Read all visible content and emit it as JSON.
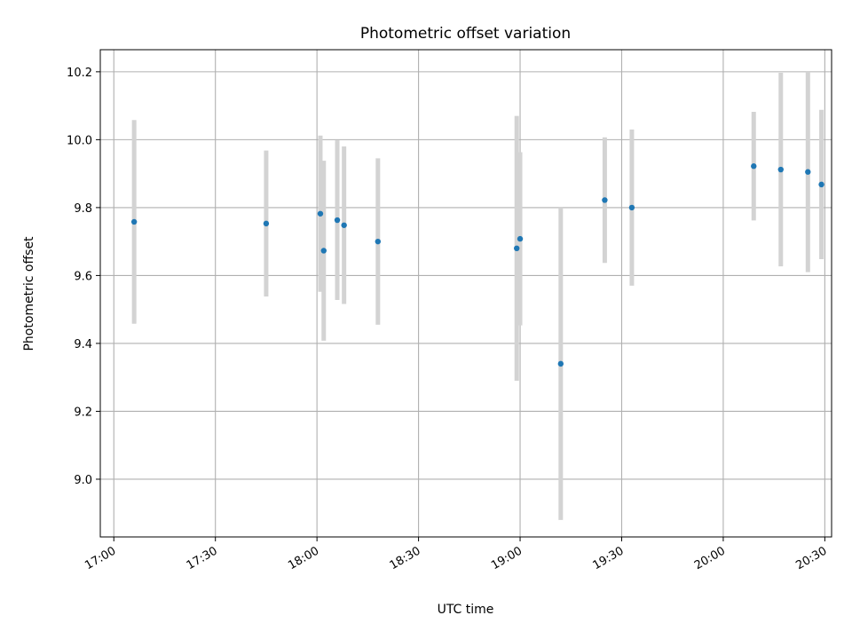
{
  "chart_data": {
    "type": "scatter",
    "title": "Photometric offset variation",
    "xlabel": "UTC time",
    "ylabel": "Photometric offset",
    "x_ticks": [
      "17:00",
      "17:30",
      "18:00",
      "18:30",
      "19:00",
      "19:30",
      "20:00",
      "20:30"
    ],
    "y_ticks": [
      "9.0",
      "9.2",
      "9.4",
      "9.6",
      "9.8",
      "10.0",
      "10.2"
    ],
    "xlim": [
      "16:56",
      "20:32"
    ],
    "ylim": [
      8.83,
      10.265
    ],
    "grid": true,
    "point_color": "#1f77b4",
    "errorbar_color": "#d3d3d3",
    "series": [
      {
        "points": [
          {
            "x": "17:06",
            "y": 9.758,
            "err": 0.3
          },
          {
            "x": "17:45",
            "y": 9.753,
            "err": 0.215
          },
          {
            "x": "18:01",
            "y": 9.782,
            "err": 0.23
          },
          {
            "x": "18:02",
            "y": 9.673,
            "err": 0.265
          },
          {
            "x": "18:06",
            "y": 9.763,
            "err": 0.235
          },
          {
            "x": "18:08",
            "y": 9.748,
            "err": 0.232
          },
          {
            "x": "18:18",
            "y": 9.7,
            "err": 0.245
          },
          {
            "x": "18:59",
            "y": 9.68,
            "err": 0.39
          },
          {
            "x": "19:00",
            "y": 9.708,
            "err": 0.255
          },
          {
            "x": "19:12",
            "y": 9.34,
            "err": 0.46
          },
          {
            "x": "19:25",
            "y": 9.822,
            "err": 0.185
          },
          {
            "x": "19:33",
            "y": 9.8,
            "err": 0.23
          },
          {
            "x": "20:09",
            "y": 9.922,
            "err": 0.16
          },
          {
            "x": "20:17",
            "y": 9.912,
            "err": 0.285
          },
          {
            "x": "20:25",
            "y": 9.905,
            "err": 0.295
          },
          {
            "x": "20:29",
            "y": 9.868,
            "err": 0.22
          }
        ]
      }
    ]
  }
}
